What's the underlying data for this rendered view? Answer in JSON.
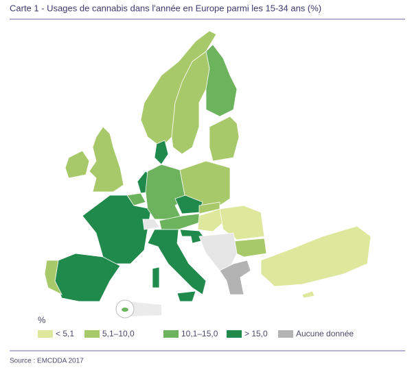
{
  "title": "Carte 1 - Usages de cannabis dans l'année en Europe parmi les 15-34 ans (%)",
  "legend": {
    "title": "%",
    "items": [
      {
        "label": "< 5,1",
        "color": "#dde89c"
      },
      {
        "label": "5,1–10,0",
        "color": "#a8c96a"
      },
      {
        "label": "10,1–15,0",
        "color": "#6db35e"
      },
      {
        "label": "> 15,0",
        "color": "#1f8a4c"
      },
      {
        "label": "Aucune donnée",
        "color": "#b3b3b3"
      }
    ]
  },
  "source": "Source : EMCDDA 2017"
}
